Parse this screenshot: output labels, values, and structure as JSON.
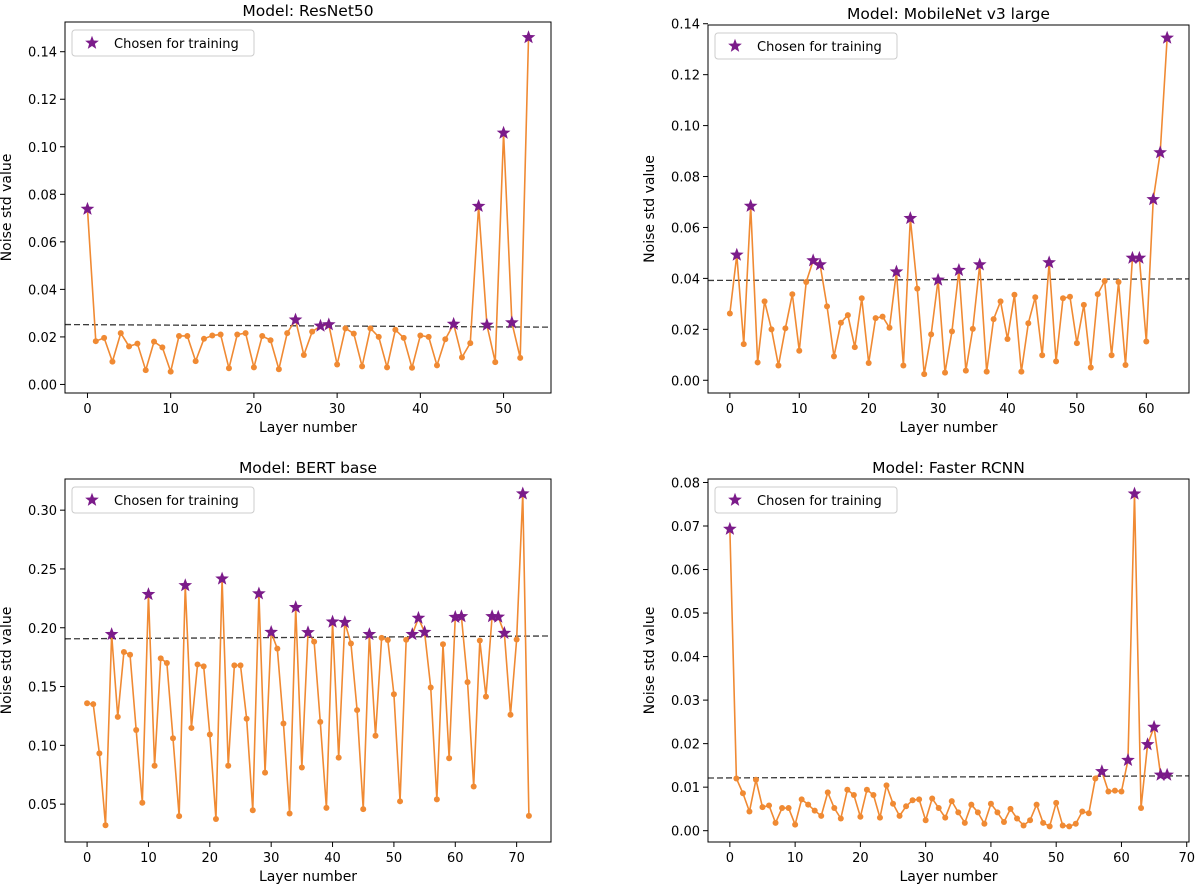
{
  "legend_label": "Chosen for training",
  "colors": {
    "line": "#f08a33",
    "star": "#7b1b8a",
    "threshold": "#3a3a3a"
  },
  "chart_data": [
    {
      "type": "line",
      "title": "Model: ResNet50",
      "xlabel": "Layer number",
      "ylabel": "Noise std value",
      "xlim": [
        -2.7,
        55.7
      ],
      "ylim": [
        -0.0036,
        0.1525
      ],
      "xticks": [
        0,
        10,
        20,
        30,
        40,
        50
      ],
      "xtick_labels": [
        "0",
        "10",
        "20",
        "30",
        "40",
        "50"
      ],
      "yticks": [
        0.0,
        0.02,
        0.04,
        0.06,
        0.08,
        0.1,
        0.12,
        0.14
      ],
      "ytick_labels": [
        "0.00",
        "0.02",
        "0.04",
        "0.06",
        "0.08",
        "0.10",
        "0.12",
        "0.14"
      ],
      "threshold": [
        0.0252,
        0.0241
      ],
      "values": [
        0.0738,
        0.0182,
        0.0196,
        0.0096,
        0.0216,
        0.016,
        0.0172,
        0.006,
        0.018,
        0.0156,
        0.0054,
        0.0204,
        0.0204,
        0.0098,
        0.0192,
        0.0206,
        0.021,
        0.0068,
        0.021,
        0.0216,
        0.0072,
        0.0204,
        0.0186,
        0.0064,
        0.0216,
        0.0272,
        0.0124,
        0.0222,
        0.0246,
        0.0252,
        0.0084,
        0.0236,
        0.0214,
        0.0076,
        0.0236,
        0.02,
        0.0072,
        0.023,
        0.0196,
        0.007,
        0.0206,
        0.02,
        0.008,
        0.019,
        0.0254,
        0.0114,
        0.0174,
        0.075,
        0.025,
        0.0094,
        0.1058,
        0.026,
        0.0112,
        0.146
      ],
      "chosen": [
        0,
        25,
        28,
        29,
        44,
        47,
        48,
        50,
        51,
        53
      ]
    },
    {
      "type": "line",
      "title": "Model: MobileNet v3 large",
      "xlabel": "Layer number",
      "ylabel": "Noise std value",
      "xlim": [
        -3.15,
        66.15
      ],
      "ylim": [
        -0.005,
        0.1395
      ],
      "xticks": [
        0,
        10,
        20,
        30,
        40,
        50,
        60
      ],
      "xtick_labels": [
        "0",
        "10",
        "20",
        "30",
        "40",
        "50",
        "60"
      ],
      "yticks": [
        0.0,
        0.02,
        0.04,
        0.06,
        0.08,
        0.1,
        0.12,
        0.14
      ],
      "ytick_labels": [
        "0.00",
        "0.02",
        "0.04",
        "0.06",
        "0.08",
        "0.10",
        "0.12",
        "0.14"
      ],
      "threshold": [
        0.0392,
        0.0398
      ],
      "values": [
        0.0262,
        0.0492,
        0.0142,
        0.0684,
        0.007,
        0.031,
        0.02,
        0.0058,
        0.0204,
        0.0338,
        0.0116,
        0.0386,
        0.047,
        0.0454,
        0.029,
        0.0094,
        0.0226,
        0.0256,
        0.013,
        0.0322,
        0.0068,
        0.0244,
        0.025,
        0.0206,
        0.0426,
        0.0058,
        0.0636,
        0.036,
        0.0024,
        0.018,
        0.0394,
        0.003,
        0.0192,
        0.0432,
        0.0038,
        0.0202,
        0.0454,
        0.0034,
        0.024,
        0.031,
        0.0162,
        0.0336,
        0.0034,
        0.0224,
        0.0326,
        0.0098,
        0.0462,
        0.0074,
        0.0322,
        0.0328,
        0.0146,
        0.0296,
        0.005,
        0.0338,
        0.039,
        0.0098,
        0.0386,
        0.006,
        0.048,
        0.048,
        0.0152,
        0.071,
        0.0894,
        0.1344
      ],
      "chosen": [
        1,
        3,
        12,
        13,
        24,
        26,
        30,
        33,
        36,
        46,
        58,
        59,
        61,
        62,
        63
      ]
    },
    {
      "type": "line",
      "title": "Model: BERT base",
      "xlabel": "Layer number",
      "ylabel": "Noise std value",
      "xlim": [
        -3.6,
        75.6
      ],
      "ylim": [
        0.0178,
        0.3265
      ],
      "xticks": [
        0,
        10,
        20,
        30,
        40,
        50,
        60,
        70
      ],
      "xtick_labels": [
        "0",
        "10",
        "20",
        "30",
        "40",
        "50",
        "60",
        "70"
      ],
      "yticks": [
        0.05,
        0.1,
        0.15,
        0.2,
        0.25,
        0.3
      ],
      "ytick_labels": [
        "0.05",
        "0.10",
        "0.15",
        "0.20",
        "0.25",
        "0.30"
      ],
      "threshold": [
        0.1906,
        0.193
      ],
      "values": [
        0.1358,
        0.135,
        0.0932,
        0.032,
        0.1944,
        0.1242,
        0.1794,
        0.177,
        0.113,
        0.0512,
        0.2284,
        0.0826,
        0.174,
        0.17,
        0.106,
        0.0398,
        0.236,
        0.1148,
        0.1688,
        0.1672,
        0.1092,
        0.0374,
        0.2416,
        0.0826,
        0.168,
        0.168,
        0.1226,
        0.0448,
        0.229,
        0.0768,
        0.1962,
        0.1822,
        0.1186,
        0.042,
        0.2174,
        0.0812,
        0.196,
        0.1882,
        0.12,
        0.0468,
        0.205,
        0.0896,
        0.2046,
        0.1866,
        0.13,
        0.0458,
        0.1944,
        0.1082,
        0.1914,
        0.1896,
        0.1434,
        0.0524,
        0.1898,
        0.1944,
        0.2082,
        0.1962,
        0.1492,
        0.054,
        0.186,
        0.089,
        0.209,
        0.2096,
        0.1538,
        0.065,
        0.1892,
        0.1414,
        0.2096,
        0.2092,
        0.1954,
        0.126,
        0.19,
        0.314,
        0.04
      ],
      "chosen": [
        4,
        10,
        16,
        22,
        28,
        30,
        34,
        36,
        40,
        42,
        46,
        53,
        54,
        55,
        60,
        61,
        66,
        67,
        68,
        71
      ]
    },
    {
      "type": "line",
      "title": "Model: Faster RCNN",
      "xlabel": "Layer number",
      "ylabel": "Noise std value",
      "xlim": [
        -3.35,
        70.35
      ],
      "ylim": [
        -0.0026,
        0.0808
      ],
      "xticks": [
        0,
        10,
        20,
        30,
        40,
        50,
        60,
        70
      ],
      "xtick_labels": [
        "0",
        "10",
        "20",
        "30",
        "40",
        "50",
        "60",
        "70"
      ],
      "yticks": [
        0.0,
        0.01,
        0.02,
        0.03,
        0.04,
        0.05,
        0.06,
        0.07,
        0.08
      ],
      "ytick_labels": [
        "0.00",
        "0.01",
        "0.02",
        "0.03",
        "0.04",
        "0.05",
        "0.06",
        "0.07",
        "0.08"
      ],
      "threshold": [
        0.0121,
        0.0126
      ],
      "values": [
        0.0693,
        0.012,
        0.0086,
        0.0044,
        0.0117,
        0.0054,
        0.0058,
        0.0018,
        0.0052,
        0.0052,
        0.0014,
        0.0072,
        0.006,
        0.0046,
        0.0034,
        0.0088,
        0.0052,
        0.0028,
        0.0094,
        0.0082,
        0.0032,
        0.0094,
        0.0082,
        0.003,
        0.0104,
        0.0062,
        0.0034,
        0.0056,
        0.007,
        0.0072,
        0.0024,
        0.0074,
        0.0052,
        0.003,
        0.0068,
        0.0042,
        0.0018,
        0.006,
        0.0042,
        0.0016,
        0.0062,
        0.0042,
        0.002,
        0.005,
        0.0028,
        0.0012,
        0.0024,
        0.006,
        0.0018,
        0.001,
        0.0064,
        0.0012,
        0.001,
        0.0016,
        0.0044,
        0.004,
        0.012,
        0.0136,
        0.009,
        0.0092,
        0.009,
        0.0162,
        0.0774,
        0.0052,
        0.0198,
        0.0238,
        0.0128,
        0.0128
      ],
      "chosen": [
        0,
        57,
        61,
        62,
        64,
        65,
        66,
        67
      ]
    }
  ]
}
